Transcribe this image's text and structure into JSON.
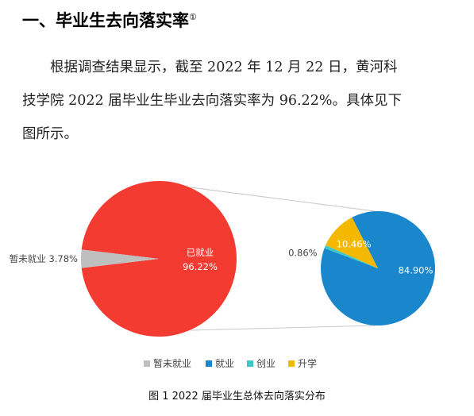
{
  "section": {
    "heading": "一、毕业生去向落实率",
    "footnote_mark": "①"
  },
  "paragraph": {
    "lines": [
      "根据调查结果显示，截至 2022 年 12 月 22 日，黄河科",
      "技学院 2022 届毕业生毕业去向落实率为 96.22%。具体见下",
      "图所示。"
    ]
  },
  "colors": {
    "employed_main": "#F33B32",
    "unemployed": "#BFBFBF",
    "employment": "#1A87CC",
    "entrepreneurship": "#3EC9C5",
    "further_study": "#F5B800",
    "connector": "#C8C8C8"
  },
  "chart_data": [
    {
      "type": "pie",
      "title": "",
      "slices": [
        {
          "label": "已就业",
          "value": 96.22,
          "value_label": "96.22%",
          "color": "#F33B32"
        },
        {
          "label": "暂未就业",
          "value": 3.78,
          "value_label": "3.78%",
          "color": "#BFBFBF"
        }
      ]
    },
    {
      "type": "pie",
      "title": "",
      "slices": [
        {
          "label": "就业",
          "value": 84.9,
          "value_label": "84.90%",
          "color": "#1A87CC"
        },
        {
          "label": "创业",
          "value": 0.86,
          "value_label": "0.86%",
          "color": "#3EC9C5"
        },
        {
          "label": "升学",
          "value": 10.46,
          "value_label": "10.46%",
          "color": "#F5B800"
        }
      ]
    }
  ],
  "legend": [
    {
      "label": "暂未就业",
      "color": "#BFBFBF"
    },
    {
      "label": "就业",
      "color": "#1A87CC"
    },
    {
      "label": "创业",
      "color": "#3EC9C5"
    },
    {
      "label": "升学",
      "color": "#F5B800"
    }
  ],
  "caption": "图 1   2022 届毕业生总体去向落实分布"
}
